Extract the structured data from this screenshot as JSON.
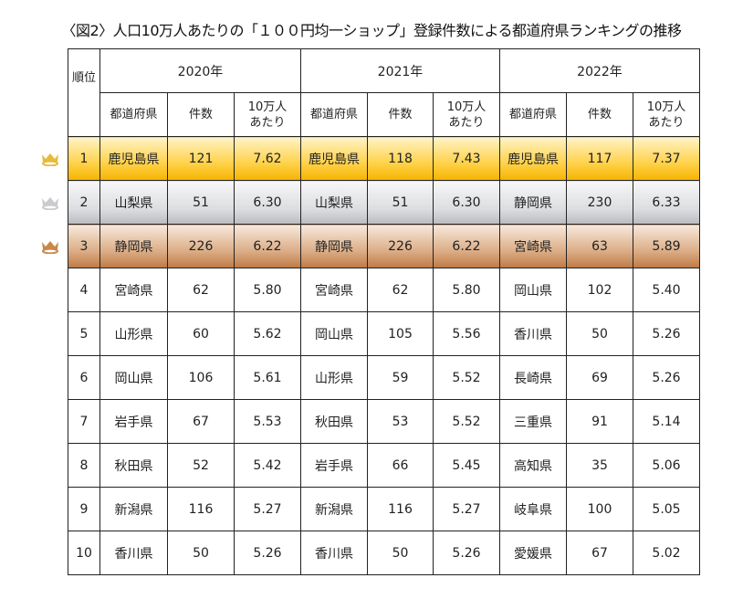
{
  "title": "〈図2〉人口10万人あたりの「１００円均一ショップ」登録件数による都道府県ランキングの推移",
  "header": {
    "rank_label": "順位",
    "years": [
      "2020年",
      "2021年",
      "2022年"
    ],
    "sub_columns": {
      "prefecture": "都道府県",
      "count": "件数",
      "per100k_line1": "10万人",
      "per100k_line2": "あたり"
    }
  },
  "medals": {
    "gold": "#e8b93a",
    "silver": "#c9cbce",
    "bronze": "#c88849"
  },
  "rows": [
    {
      "rank": "1",
      "y2020": {
        "pref": "鹿児島県",
        "count": "121",
        "per": "7.62"
      },
      "y2021": {
        "pref": "鹿児島県",
        "count": "118",
        "per": "7.43"
      },
      "y2022": {
        "pref": "鹿児島県",
        "count": "117",
        "per": "7.37"
      }
    },
    {
      "rank": "2",
      "y2020": {
        "pref": "山梨県",
        "count": "51",
        "per": "6.30"
      },
      "y2021": {
        "pref": "山梨県",
        "count": "51",
        "per": "6.30"
      },
      "y2022": {
        "pref": "静岡県",
        "count": "230",
        "per": "6.33"
      }
    },
    {
      "rank": "3",
      "y2020": {
        "pref": "静岡県",
        "count": "226",
        "per": "6.22"
      },
      "y2021": {
        "pref": "静岡県",
        "count": "226",
        "per": "6.22"
      },
      "y2022": {
        "pref": "宮崎県",
        "count": "63",
        "per": "5.89"
      }
    },
    {
      "rank": "4",
      "y2020": {
        "pref": "宮崎県",
        "count": "62",
        "per": "5.80"
      },
      "y2021": {
        "pref": "宮崎県",
        "count": "62",
        "per": "5.80"
      },
      "y2022": {
        "pref": "岡山県",
        "count": "102",
        "per": "5.40"
      }
    },
    {
      "rank": "5",
      "y2020": {
        "pref": "山形県",
        "count": "60",
        "per": "5.62"
      },
      "y2021": {
        "pref": "岡山県",
        "count": "105",
        "per": "5.56"
      },
      "y2022": {
        "pref": "香川県",
        "count": "50",
        "per": "5.26"
      }
    },
    {
      "rank": "6",
      "y2020": {
        "pref": "岡山県",
        "count": "106",
        "per": "5.61"
      },
      "y2021": {
        "pref": "山形県",
        "count": "59",
        "per": "5.52"
      },
      "y2022": {
        "pref": "長崎県",
        "count": "69",
        "per": "5.26"
      }
    },
    {
      "rank": "7",
      "y2020": {
        "pref": "岩手県",
        "count": "67",
        "per": "5.53"
      },
      "y2021": {
        "pref": "秋田県",
        "count": "53",
        "per": "5.52"
      },
      "y2022": {
        "pref": "三重県",
        "count": "91",
        "per": "5.14"
      }
    },
    {
      "rank": "8",
      "y2020": {
        "pref": "秋田県",
        "count": "52",
        "per": "5.42"
      },
      "y2021": {
        "pref": "岩手県",
        "count": "66",
        "per": "5.45"
      },
      "y2022": {
        "pref": "高知県",
        "count": "35",
        "per": "5.06"
      }
    },
    {
      "rank": "9",
      "y2020": {
        "pref": "新潟県",
        "count": "116",
        "per": "5.27"
      },
      "y2021": {
        "pref": "新潟県",
        "count": "116",
        "per": "5.27"
      },
      "y2022": {
        "pref": "岐阜県",
        "count": "100",
        "per": "5.05"
      }
    },
    {
      "rank": "10",
      "y2020": {
        "pref": "香川県",
        "count": "50",
        "per": "5.26"
      },
      "y2021": {
        "pref": "香川県",
        "count": "50",
        "per": "5.26"
      },
      "y2022": {
        "pref": "愛媛県",
        "count": "67",
        "per": "5.02"
      }
    }
  ]
}
